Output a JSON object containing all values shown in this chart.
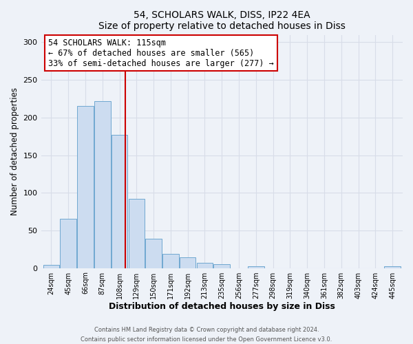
{
  "title": "54, SCHOLARS WALK, DISS, IP22 4EA",
  "subtitle": "Size of property relative to detached houses in Diss",
  "xlabel": "Distribution of detached houses by size in Diss",
  "ylabel": "Number of detached properties",
  "bar_labels": [
    "24sqm",
    "45sqm",
    "66sqm",
    "87sqm",
    "108sqm",
    "129sqm",
    "150sqm",
    "171sqm",
    "192sqm",
    "213sqm",
    "235sqm",
    "256sqm",
    "277sqm",
    "298sqm",
    "319sqm",
    "340sqm",
    "361sqm",
    "382sqm",
    "403sqm",
    "424sqm",
    "445sqm"
  ],
  "bar_values": [
    4,
    65,
    215,
    222,
    177,
    92,
    39,
    19,
    14,
    7,
    5,
    0,
    2,
    0,
    0,
    0,
    0,
    0,
    0,
    0,
    2
  ],
  "bar_color": "#ccdcf0",
  "bar_edge_color": "#6fa8d0",
  "vline_color": "#cc0000",
  "ylim": [
    0,
    310
  ],
  "yticks": [
    0,
    50,
    100,
    150,
    200,
    250,
    300
  ],
  "annotation_title": "54 SCHOLARS WALK: 115sqm",
  "annotation_line1": "← 67% of detached houses are smaller (565)",
  "annotation_line2": "33% of semi-detached houses are larger (277) →",
  "annotation_box_color": "#ffffff",
  "annotation_box_edge": "#cc0000",
  "footer1": "Contains HM Land Registry data © Crown copyright and database right 2024.",
  "footer2": "Contains public sector information licensed under the Open Government Licence v3.0.",
  "background_color": "#eef2f8",
  "plot_background": "#eef2f8",
  "grid_color": "#d8dde8"
}
